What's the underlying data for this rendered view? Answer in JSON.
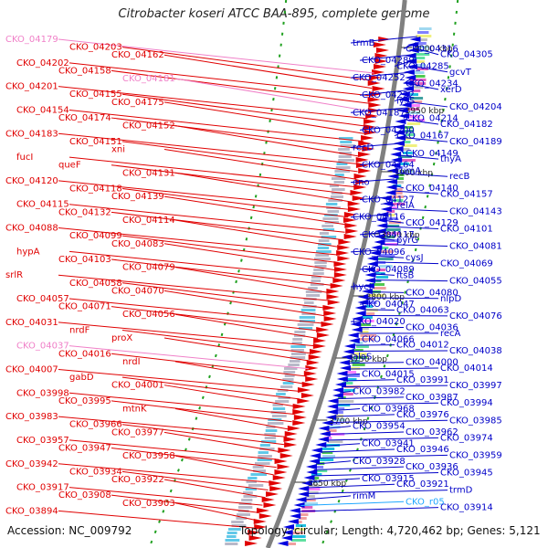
{
  "title": "Citrobacter koseri ATCC BAA-895, complete genome",
  "footer": {
    "accession": "Accession: NC_009792",
    "summary": "Topology: circular; Length: 4,720,462 bp; Genes: 5,121"
  },
  "colors": {
    "left_label": "#e00000",
    "left_pink": "#f080c8",
    "right_label": "#0000c8",
    "right_cyan": "#20a8ff"
  },
  "scale_marks": [
    {
      "label": "4000 kbp"
    },
    {
      "label": "3950 kbp"
    },
    {
      "label": "3900 kbp"
    },
    {
      "label": "3850 kbp"
    },
    {
      "label": "3800 kbp"
    },
    {
      "label": "3750 kbp"
    },
    {
      "label": "3700 kbp"
    },
    {
      "label": "3650 kbp"
    }
  ],
  "left_labels": [
    {
      "text": "CKO_04179",
      "pink": true
    },
    {
      "text": "CKO_04203"
    },
    {
      "text": "CKO_04162"
    },
    {
      "text": "CKO_04202"
    },
    {
      "text": "CKO_04158"
    },
    {
      "text": "CKO_04181",
      "pink": true
    },
    {
      "text": "CKO_04201"
    },
    {
      "text": "CKO_04155"
    },
    {
      "text": "CKO_04175"
    },
    {
      "text": "CKO_04154"
    },
    {
      "text": "CKO_04174"
    },
    {
      "text": "CKO_04152"
    },
    {
      "text": "CKO_04183"
    },
    {
      "text": "CKO_04151"
    },
    {
      "text": "xni"
    },
    {
      "text": "fucI"
    },
    {
      "text": "queF"
    },
    {
      "text": "CKO_04131"
    },
    {
      "text": "CKO_04120"
    },
    {
      "text": "CKO_04118"
    },
    {
      "text": "CKO_04139"
    },
    {
      "text": "CKO_04115"
    },
    {
      "text": "CKO_04132"
    },
    {
      "text": "CKO_04114"
    },
    {
      "text": "CKO_04088"
    },
    {
      "text": "CKO_04099"
    },
    {
      "text": "CKO_04083"
    },
    {
      "text": "hypA"
    },
    {
      "text": "CKO_04103"
    },
    {
      "text": "CKO_04079"
    },
    {
      "text": "srlR"
    },
    {
      "text": "CKO_04058"
    },
    {
      "text": "CKO_04070"
    },
    {
      "text": "CKO_04057"
    },
    {
      "text": "CKO_04071"
    },
    {
      "text": "CKO_04056"
    },
    {
      "text": "CKO_04031"
    },
    {
      "text": "nrdF"
    },
    {
      "text": "proX"
    },
    {
      "text": "CKO_04037",
      "pink": true
    },
    {
      "text": "CKO_04016"
    },
    {
      "text": "nrdI"
    },
    {
      "text": "CKO_04007"
    },
    {
      "text": "gabD"
    },
    {
      "text": "CKO_04001"
    },
    {
      "text": "CKO_03998"
    },
    {
      "text": "CKO_03995"
    },
    {
      "text": "mtnK"
    },
    {
      "text": "CKO_03983"
    },
    {
      "text": "CKO_03966"
    },
    {
      "text": "CKO_03977"
    },
    {
      "text": "CKO_03957"
    },
    {
      "text": "CKO_03947"
    },
    {
      "text": "CKO_03958"
    },
    {
      "text": "CKO_03942"
    },
    {
      "text": "CKO_03934"
    },
    {
      "text": "CKO_03922"
    },
    {
      "text": "CKO_03917"
    },
    {
      "text": "CKO_03908"
    },
    {
      "text": "CKO_03903"
    },
    {
      "text": "CKO_03894"
    }
  ],
  "right_labels": [
    {
      "text": "trmB"
    },
    {
      "text": "CKO_04316"
    },
    {
      "text": "CKO_04305"
    },
    {
      "text": "CKO_04289"
    },
    {
      "text": "CKO_04285"
    },
    {
      "text": "gcvT"
    },
    {
      "text": "CKO_04252"
    },
    {
      "text": "CKO_04234"
    },
    {
      "text": "xerD"
    },
    {
      "text": "CKO_04222"
    },
    {
      "text": "lysS"
    },
    {
      "text": "CKO_04204"
    },
    {
      "text": "CKO_04187"
    },
    {
      "text": "CKO_04214"
    },
    {
      "text": "CKO_04182"
    },
    {
      "text": "CKO_04200"
    },
    {
      "text": "CKO_04167"
    },
    {
      "text": "CKO_04189"
    },
    {
      "text": "recD"
    },
    {
      "text": "CKO_04149"
    },
    {
      "text": "thyA"
    },
    {
      "text": "CKO_04164"
    },
    {
      "text": "rumA"
    },
    {
      "text": "recB"
    },
    {
      "text": "eno"
    },
    {
      "text": "CKO_04140"
    },
    {
      "text": "CKO_04157"
    },
    {
      "text": "CKO_04127"
    },
    {
      "text": "relA"
    },
    {
      "text": "CKO_04143"
    },
    {
      "text": "CKO_04116"
    },
    {
      "text": "CKO_04129"
    },
    {
      "text": "CKO_04101"
    },
    {
      "text": "CKO_04117"
    },
    {
      "text": "pyrG"
    },
    {
      "text": "CKO_04081"
    },
    {
      "text": "CKO_04096"
    },
    {
      "text": "cysJ"
    },
    {
      "text": "CKO_04069"
    },
    {
      "text": "CKO_04089"
    },
    {
      "text": "ftsB"
    },
    {
      "text": "CKO_04055"
    },
    {
      "text": "hycI"
    },
    {
      "text": "CKO_04080"
    },
    {
      "text": "nlpD"
    },
    {
      "text": "CKO_04047"
    },
    {
      "text": "CKO_04063"
    },
    {
      "text": "CKO_04076"
    },
    {
      "text": "CKO_04020"
    },
    {
      "text": "CKO_04036"
    },
    {
      "text": "recA"
    },
    {
      "text": "CKO_04066"
    },
    {
      "text": "CKO_04012"
    },
    {
      "text": "CKO_04038"
    },
    {
      "text": "alaS"
    },
    {
      "text": "CKO_04000"
    },
    {
      "text": "CKO_04014"
    },
    {
      "text": "CKO_04015"
    },
    {
      "text": "CKO_03991"
    },
    {
      "text": "CKO_03997"
    },
    {
      "text": "CKO_03982"
    },
    {
      "text": "CKO_03987"
    },
    {
      "text": "CKO_03994"
    },
    {
      "text": "CKO_03968"
    },
    {
      "text": "CKO_03976"
    },
    {
      "text": "CKO_03985"
    },
    {
      "text": "CKO_03954"
    },
    {
      "text": "CKO_03962"
    },
    {
      "text": "CKO_03974"
    },
    {
      "text": "CKO_03941"
    },
    {
      "text": "CKO_03946"
    },
    {
      "text": "CKO_03959"
    },
    {
      "text": "CKO_03928"
    },
    {
      "text": "CKO_03936"
    },
    {
      "text": "CKO_03945"
    },
    {
      "text": "CKO_03915"
    },
    {
      "text": "CKO_03921"
    },
    {
      "text": "trmD"
    },
    {
      "text": "rimM"
    },
    {
      "text": "CKO_r05",
      "cyan": true
    },
    {
      "text": "CKO_03914"
    }
  ]
}
